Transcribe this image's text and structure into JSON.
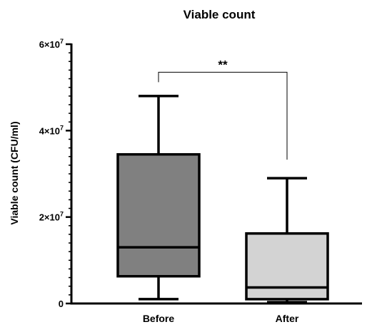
{
  "chart_data": {
    "type": "box",
    "title": "Viable count",
    "xlabel": "",
    "ylabel": "Viable count (CFU/ml)",
    "ylim": [
      0,
      60000000
    ],
    "y_ticks": [
      {
        "value": 0,
        "mantissa": "0",
        "base": "",
        "exp": ""
      },
      {
        "value": 20000000,
        "mantissa": "2",
        "base": "×10",
        "exp": "7"
      },
      {
        "value": 40000000,
        "mantissa": "4",
        "base": "×10",
        "exp": "7"
      },
      {
        "value": 60000000,
        "mantissa": "6",
        "base": "×10",
        "exp": "7"
      }
    ],
    "categories": [
      "Before",
      "After"
    ],
    "boxes": [
      {
        "name": "Before",
        "min": 1000000,
        "q1": 6300000,
        "median": 13000000,
        "q3": 34500000,
        "max": 48000000,
        "color": "#808080"
      },
      {
        "name": "After",
        "min": 300000,
        "q1": 1000000,
        "median": 3700000,
        "q3": 16200000,
        "max": 29000000,
        "color": "#d3d3d3"
      }
    ],
    "significance": {
      "label": "**",
      "between": [
        "Before",
        "After"
      ],
      "y": 53500000
    },
    "grid": false
  }
}
